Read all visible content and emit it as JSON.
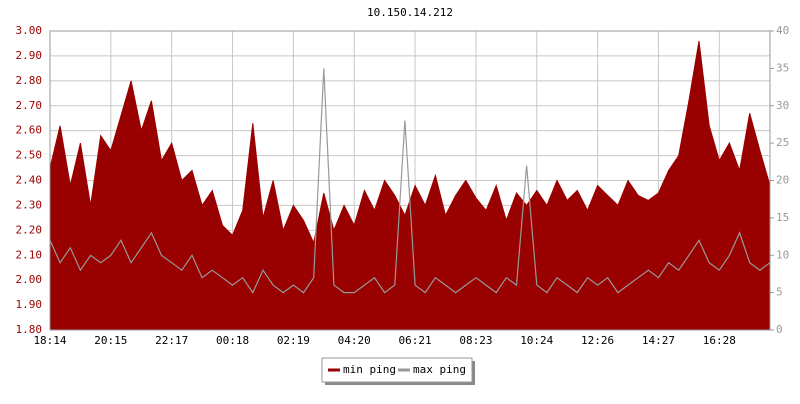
{
  "chart_data": {
    "type": "line",
    "title": "10.150.14.212",
    "categories": [
      "18:14",
      null,
      null,
      null,
      null,
      null,
      "20:15",
      null,
      null,
      null,
      null,
      null,
      "22:17",
      null,
      null,
      null,
      null,
      null,
      "00:18",
      null,
      null,
      null,
      null,
      null,
      "02:19",
      null,
      null,
      null,
      null,
      null,
      "04:20",
      null,
      null,
      null,
      null,
      null,
      "06:21",
      null,
      null,
      null,
      null,
      null,
      "08:23",
      null,
      null,
      null,
      null,
      null,
      "10:24",
      null,
      null,
      null,
      null,
      null,
      "12:26",
      null,
      null,
      null,
      null,
      null,
      "14:27",
      null,
      null,
      null,
      null,
      null,
      "16:28",
      null,
      null,
      null,
      null,
      null
    ],
    "series": [
      {
        "name": "min ping",
        "color": "#990000",
        "area": true,
        "values": [
          2.45,
          2.62,
          2.38,
          2.55,
          2.3,
          2.58,
          2.52,
          2.66,
          2.8,
          2.6,
          2.72,
          2.48,
          2.55,
          2.4,
          2.44,
          2.3,
          2.36,
          2.22,
          2.18,
          2.28,
          2.63,
          2.25,
          2.4,
          2.2,
          2.3,
          2.24,
          2.15,
          2.35,
          2.2,
          2.3,
          2.22,
          2.36,
          2.28,
          2.4,
          2.34,
          2.26,
          2.38,
          2.3,
          2.42,
          2.26,
          2.34,
          2.4,
          2.33,
          2.28,
          2.38,
          2.24,
          2.35,
          2.3,
          2.36,
          2.3,
          2.4,
          2.32,
          2.36,
          2.28,
          2.38,
          2.34,
          2.3,
          2.4,
          2.34,
          2.32,
          2.35,
          2.44,
          2.5,
          2.72,
          2.96,
          2.62,
          2.48,
          2.55,
          2.44,
          2.67,
          2.52,
          2.38
        ]
      },
      {
        "name": "max ping",
        "color": "#999999",
        "axis": "y2",
        "area": false,
        "values": [
          12,
          9,
          11,
          8,
          10,
          9,
          10,
          12,
          9,
          11,
          13,
          10,
          9,
          8,
          10,
          7,
          8,
          7,
          6,
          7,
          5,
          8,
          6,
          5,
          6,
          5,
          7,
          35,
          6,
          5,
          5,
          6,
          7,
          5,
          6,
          28,
          6,
          5,
          7,
          6,
          5,
          6,
          7,
          6,
          5,
          7,
          6,
          22,
          6,
          5,
          7,
          6,
          5,
          7,
          6,
          7,
          5,
          6,
          7,
          8,
          7,
          9,
          8,
          10,
          12,
          9,
          8,
          10,
          13,
          9,
          8,
          9
        ]
      }
    ],
    "ylim": [
      1.8,
      3.0
    ],
    "yticks": [
      {
        "value": 1.8,
        "label": "1.80"
      },
      {
        "value": 1.9,
        "label": "1.90"
      },
      {
        "value": 2.0,
        "label": "2.00"
      },
      {
        "value": 2.1,
        "label": "2.10"
      },
      {
        "value": 2.2,
        "label": "2.20"
      },
      {
        "value": 2.3,
        "label": "2.30"
      },
      {
        "value": 2.4,
        "label": "2.40"
      },
      {
        "value": 2.5,
        "label": "2.50"
      },
      {
        "value": 2.6,
        "label": "2.60"
      },
      {
        "value": 2.7,
        "label": "2.70"
      },
      {
        "value": 2.8,
        "label": "2.80"
      },
      {
        "value": 2.9,
        "label": "2.90"
      },
      {
        "value": 3.0,
        "label": "3.00"
      }
    ],
    "y2lim": [
      0,
      40
    ],
    "y2ticks": [
      0,
      5,
      10,
      15,
      20,
      25,
      30,
      35,
      40
    ],
    "grid": true,
    "legend": "bottom"
  }
}
